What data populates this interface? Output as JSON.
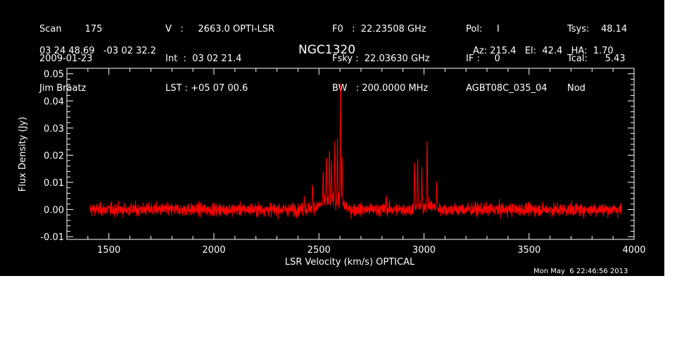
{
  "header": {
    "col1": [
      "Scan        175",
      "2009-01-23",
      "Jim Braatz"
    ],
    "col2": [
      "V   :     2663.0 OPTI-LSR",
      "Int  :  03 02 21.4",
      "LST : +05 07 00.6"
    ],
    "col3": [
      "F0   :  22.23508 GHz",
      "Fsky :  22.03630 GHz",
      "BW   : 200.0000 MHz"
    ],
    "col4": [
      "Pol:     I",
      "IF :     0",
      "AGBT08C_035_04"
    ],
    "col5": [
      "Tsys:    48.14",
      "Tcal:      5.43",
      "Nod"
    ],
    "coords": "03 24 48.69   -03 02 32.2",
    "source": "NGC1320",
    "azel": "Az: 215.4   El:  42.4   HA:  1.70",
    "timestamp": "Mon May  6 22:46:56 2013"
  },
  "chart_data": {
    "type": "line",
    "title": "NGC1320",
    "xlabel": "LSR Velocity (km/s) OPTICAL",
    "ylabel": "Flux Density (Jy)",
    "xlim": [
      1300,
      4000
    ],
    "ylim": [
      -0.011,
      0.052
    ],
    "x_ticks": [
      1500,
      2000,
      2500,
      3000,
      3500,
      4000
    ],
    "y_ticks": [
      -0.01,
      0.0,
      0.01,
      0.02,
      0.03,
      0.04,
      0.05
    ],
    "y_tick_labels": [
      "-0.01",
      "0.00",
      "0.01",
      "0.02",
      "0.03",
      "0.04",
      "0.05"
    ],
    "grid": false,
    "series": [
      {
        "color": "#ff0000",
        "x_range": [
          1410,
          3940
        ],
        "noise_rms": 0.0015,
        "features": [
          {
            "x": 2430,
            "y": 0.006
          },
          {
            "x": 2470,
            "y": 0.008
          },
          {
            "x": 2520,
            "y": 0.012
          },
          {
            "x": 2535,
            "y": 0.017
          },
          {
            "x": 2550,
            "y": 0.019
          },
          {
            "x": 2560,
            "y": 0.015
          },
          {
            "x": 2575,
            "y": 0.022
          },
          {
            "x": 2588,
            "y": 0.023
          },
          {
            "x": 2602,
            "y": 0.046
          },
          {
            "x": 2610,
            "y": 0.018
          },
          {
            "x": 2820,
            "y": 0.005
          },
          {
            "x": 2955,
            "y": 0.017
          },
          {
            "x": 2970,
            "y": 0.019
          },
          {
            "x": 2990,
            "y": 0.012
          },
          {
            "x": 3015,
            "y": 0.023
          },
          {
            "x": 3060,
            "y": 0.009
          }
        ]
      }
    ]
  }
}
